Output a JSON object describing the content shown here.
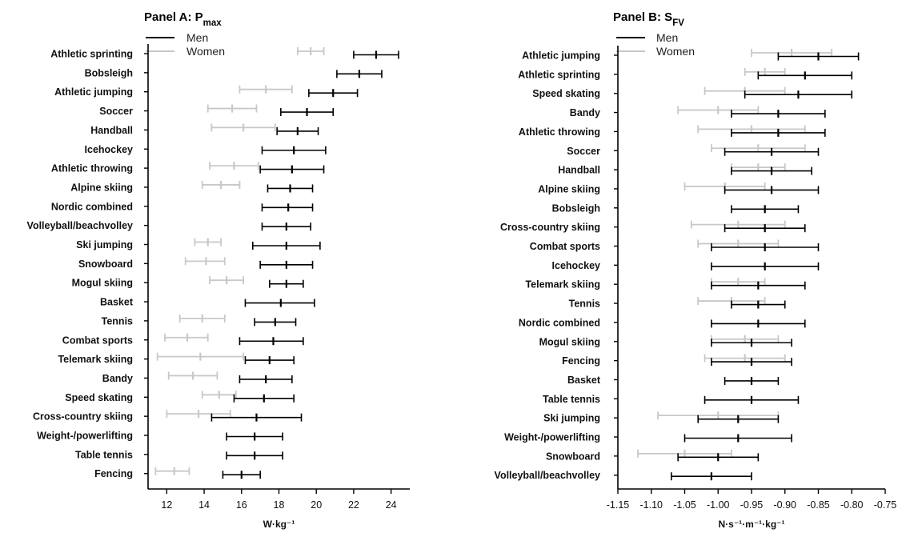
{
  "chart_data": [
    {
      "type": "errorbar",
      "title": "Panel A: P",
      "title_sub": "max",
      "xlabel": "W·kg⁻¹",
      "xlim": [
        11,
        25
      ],
      "xticks": [
        12,
        14,
        16,
        18,
        20,
        22,
        24
      ],
      "xtick_labels": [
        "12",
        "14",
        "16",
        "18",
        "20",
        "22",
        "24"
      ],
      "legend": {
        "position": "top-left",
        "entries": [
          {
            "name": "Men",
            "color": "#000000"
          },
          {
            "name": "Women",
            "color": "#c8c8c8"
          }
        ]
      },
      "categories": [
        "Athletic sprinting",
        "Bobsleigh",
        "Athletic jumping",
        "Soccer",
        "Handball",
        "Icehockey",
        "Athletic throwing",
        "Alpine skiing",
        "Nordic combined",
        "Volleyball/beachvolley",
        "Ski jumping",
        "Snowboard",
        "Mogul skiing",
        "Basket",
        "Tennis",
        "Combat sports",
        "Telemark skiing",
        "Bandy",
        "Speed skating",
        "Cross-country skiing",
        "Weight-/powerlifting",
        "Table tennis",
        "Fencing"
      ],
      "series": [
        {
          "name": "Men",
          "color": "#000000",
          "mean": [
            23.2,
            22.3,
            20.9,
            19.5,
            19.0,
            18.8,
            18.7,
            18.6,
            18.5,
            18.4,
            18.4,
            18.4,
            18.4,
            18.1,
            17.8,
            17.7,
            17.5,
            17.3,
            17.2,
            16.8,
            16.7,
            16.7,
            16.0
          ],
          "lower": [
            22.0,
            21.1,
            19.6,
            18.1,
            17.9,
            17.1,
            17.0,
            17.4,
            17.1,
            17.1,
            16.6,
            17.0,
            17.5,
            16.2,
            16.7,
            15.9,
            16.2,
            15.9,
            15.6,
            14.4,
            15.2,
            15.2,
            15.0
          ],
          "upper": [
            24.4,
            23.5,
            22.2,
            20.9,
            20.1,
            20.5,
            20.4,
            19.8,
            19.8,
            19.7,
            20.2,
            19.8,
            19.3,
            19.9,
            18.9,
            19.3,
            18.8,
            18.7,
            18.8,
            19.2,
            18.2,
            18.2,
            17.0
          ]
        },
        {
          "name": "Women",
          "color": "#c8c8c8",
          "mean": [
            19.7,
            null,
            17.3,
            15.5,
            16.1,
            null,
            15.6,
            14.9,
            null,
            null,
            14.2,
            14.1,
            15.2,
            null,
            13.9,
            13.1,
            13.8,
            13.4,
            14.8,
            13.7,
            null,
            null,
            12.4
          ],
          "lower": [
            19.0,
            null,
            15.9,
            14.2,
            14.4,
            null,
            14.3,
            13.9,
            null,
            null,
            13.5,
            13.0,
            14.3,
            null,
            12.7,
            11.9,
            11.5,
            12.1,
            13.9,
            12.0,
            null,
            null,
            11.4
          ],
          "upper": [
            20.4,
            null,
            18.7,
            16.8,
            17.8,
            null,
            16.9,
            15.9,
            null,
            null,
            14.9,
            15.1,
            16.1,
            null,
            15.1,
            14.2,
            16.1,
            14.7,
            15.7,
            15.4,
            null,
            null,
            13.2
          ]
        }
      ]
    },
    {
      "type": "errorbar",
      "title": "Panel B: S",
      "title_sub": "FV",
      "xlabel": "N·s⁻¹·m⁻¹·kg⁻¹",
      "xlim": [
        -1.15,
        -0.75
      ],
      "xticks": [
        -1.15,
        -1.1,
        -1.05,
        -1.0,
        -0.95,
        -0.9,
        -0.85,
        -0.8,
        -0.75
      ],
      "xtick_labels": [
        "-1.15",
        "-1.10",
        "-1.05",
        "-1.00",
        "-0.95",
        "-0.90",
        "-0.85",
        "-0.80",
        "-0.75"
      ],
      "legend": {
        "position": "top-left",
        "entries": [
          {
            "name": "Men",
            "color": "#000000"
          },
          {
            "name": "Women",
            "color": "#c8c8c8"
          }
        ]
      },
      "categories": [
        "Athletic jumping",
        "Athletic sprinting",
        "Speed skating",
        "Bandy",
        "Athletic throwing",
        "Soccer",
        "Handball",
        "Alpine skiing",
        "Bobsleigh",
        "Cross-country skiing",
        "Combat sports",
        "Icehockey",
        "Telemark skiing",
        "Tennis",
        "Nordic combined",
        "Mogul skiing",
        "Fencing",
        "Basket",
        "Table tennis",
        "Ski jumping",
        "Weight-/powerlifting",
        "Snowboard",
        "Volleyball/beachvolley"
      ],
      "series": [
        {
          "name": "Men",
          "color": "#000000",
          "mean": [
            -0.85,
            -0.87,
            -0.88,
            -0.91,
            -0.91,
            -0.92,
            -0.92,
            -0.92,
            -0.93,
            -0.93,
            -0.93,
            -0.93,
            -0.94,
            -0.94,
            -0.94,
            -0.95,
            -0.95,
            -0.95,
            -0.95,
            -0.97,
            -0.97,
            -1.0,
            -1.01
          ],
          "lower": [
            -0.91,
            -0.94,
            -0.96,
            -0.98,
            -0.98,
            -0.99,
            -0.98,
            -0.99,
            -0.98,
            -0.99,
            -1.01,
            -1.01,
            -1.01,
            -0.98,
            -1.01,
            -1.01,
            -1.01,
            -0.99,
            -1.02,
            -1.03,
            -1.05,
            -1.06,
            -1.07
          ],
          "upper": [
            -0.79,
            -0.8,
            -0.8,
            -0.84,
            -0.84,
            -0.85,
            -0.86,
            -0.85,
            -0.88,
            -0.87,
            -0.85,
            -0.85,
            -0.87,
            -0.9,
            -0.87,
            -0.89,
            -0.89,
            -0.91,
            -0.88,
            -0.91,
            -0.89,
            -0.94,
            -0.95
          ]
        },
        {
          "name": "Women",
          "color": "#c8c8c8",
          "mean": [
            -0.89,
            -0.93,
            -0.96,
            -1.0,
            -0.95,
            -0.94,
            -0.94,
            -0.99,
            null,
            -0.97,
            -0.97,
            null,
            -0.97,
            -0.98,
            null,
            -0.96,
            -0.96,
            null,
            null,
            -1.0,
            null,
            -1.05,
            null
          ],
          "lower": [
            -0.95,
            -0.96,
            -1.02,
            -1.06,
            -1.03,
            -1.01,
            -0.98,
            -1.05,
            null,
            -1.04,
            -1.03,
            null,
            -1.01,
            -1.03,
            null,
            -1.01,
            -1.02,
            null,
            null,
            -1.09,
            null,
            -1.12,
            null
          ],
          "upper": [
            -0.83,
            -0.9,
            -0.9,
            -0.94,
            -0.87,
            -0.87,
            -0.9,
            -0.93,
            null,
            -0.9,
            -0.91,
            null,
            -0.93,
            -0.93,
            null,
            -0.91,
            -0.9,
            null,
            null,
            -0.91,
            null,
            -0.98,
            null
          ]
        }
      ]
    }
  ]
}
